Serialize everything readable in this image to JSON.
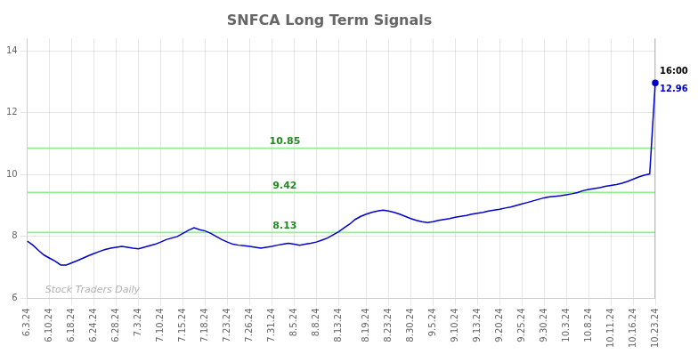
{
  "chart_data": {
    "type": "line",
    "title": "SNFCA Long Term Signals",
    "categories": [
      "6.3.24",
      null,
      null,
      null,
      "6.10.24",
      null,
      null,
      null,
      "6.18.24",
      null,
      null,
      null,
      "6.24.24",
      null,
      null,
      null,
      "6.28.24",
      null,
      null,
      null,
      "7.3.24",
      null,
      null,
      null,
      "7.10.24",
      null,
      null,
      null,
      "7.15.24",
      null,
      null,
      null,
      "7.18.24",
      null,
      null,
      null,
      "7.23.24",
      null,
      null,
      null,
      "7.26.24",
      null,
      null,
      null,
      "7.31.24",
      null,
      null,
      null,
      "8.5.24",
      null,
      null,
      null,
      "8.8.24",
      null,
      null,
      null,
      "8.13.24",
      null,
      null,
      null,
      null,
      "8.19.24",
      null,
      null,
      null,
      "8.23.24",
      null,
      null,
      null,
      "8.30.24",
      null,
      null,
      null,
      "9.5.24",
      null,
      null,
      null,
      "9.10.24",
      null,
      null,
      null,
      "9.13.24",
      null,
      null,
      null,
      "9.20.24",
      null,
      null,
      null,
      "9.25.24",
      null,
      null,
      null,
      "9.30.24",
      null,
      null,
      null,
      "10.3.24",
      null,
      null,
      null,
      "10.8.24",
      null,
      null,
      null,
      "10.11.24",
      null,
      null,
      null,
      "10.16.24",
      null,
      null,
      null,
      "10.23.24"
    ],
    "values": [
      7.85,
      7.72,
      7.55,
      7.4,
      7.3,
      7.2,
      7.08,
      7.08,
      7.15,
      7.22,
      7.3,
      7.38,
      7.45,
      7.52,
      7.58,
      7.62,
      7.65,
      7.68,
      7.65,
      7.62,
      7.6,
      7.65,
      7.7,
      7.75,
      7.82,
      7.9,
      7.95,
      8.0,
      8.1,
      8.2,
      8.28,
      8.22,
      8.18,
      8.1,
      8.0,
      7.9,
      7.82,
      7.75,
      7.72,
      7.7,
      7.68,
      7.65,
      7.62,
      7.65,
      7.68,
      7.72,
      7.75,
      7.78,
      7.75,
      7.72,
      7.75,
      7.78,
      7.82,
      7.88,
      7.95,
      8.05,
      8.15,
      8.28,
      8.4,
      8.55,
      8.65,
      8.72,
      8.78,
      8.82,
      8.85,
      8.82,
      8.78,
      8.72,
      8.65,
      8.58,
      8.52,
      8.48,
      8.45,
      8.48,
      8.52,
      8.55,
      8.58,
      8.62,
      8.65,
      8.68,
      8.72,
      8.75,
      8.78,
      8.82,
      8.85,
      8.88,
      8.92,
      8.95,
      9.0,
      9.05,
      9.1,
      9.15,
      9.2,
      9.25,
      9.28,
      9.3,
      9.32,
      9.35,
      9.38,
      9.42,
      9.48,
      9.52,
      9.55,
      9.58,
      9.62,
      9.65,
      9.68,
      9.72,
      9.78,
      9.85,
      9.92,
      9.98,
      10.02,
      12.96
    ],
    "color": "#0000CC",
    "ylim": [
      6,
      14.4
    ],
    "yticks": [
      6,
      8,
      10,
      12,
      14
    ],
    "grid": true,
    "hlines": [
      {
        "value": 8.13,
        "label": "8.13",
        "color": "#90EE90",
        "label_color": "#228B22"
      },
      {
        "value": 9.42,
        "label": "9.42",
        "color": "#90EE90",
        "label_color": "#228B22"
      },
      {
        "value": 10.85,
        "label": "10.85",
        "color": "#90EE90",
        "label_color": "#228B22"
      }
    ],
    "watermark": "Stock Traders Daily",
    "last_point_labels": [
      "16:00",
      "12.96"
    ]
  }
}
